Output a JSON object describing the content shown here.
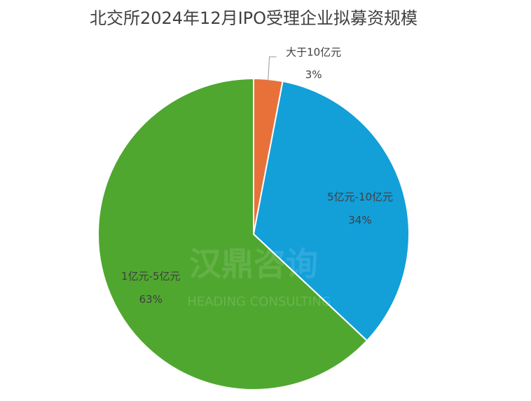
{
  "chart_data": {
    "type": "pie",
    "title": "北交所2024年12月IPO受理企业拟募资规模",
    "categories": [
      "大于10亿元",
      "5亿元-10亿元",
      "1亿元-5亿元"
    ],
    "values": [
      3,
      34,
      63
    ],
    "value_labels": [
      "3%",
      "34%",
      "63%"
    ],
    "colors": [
      "#e8713a",
      "#139fd8",
      "#4fa72f"
    ],
    "watermark": {
      "name": "汉鼎咨询",
      "subtitle": "HEADING CONSULTING"
    }
  }
}
